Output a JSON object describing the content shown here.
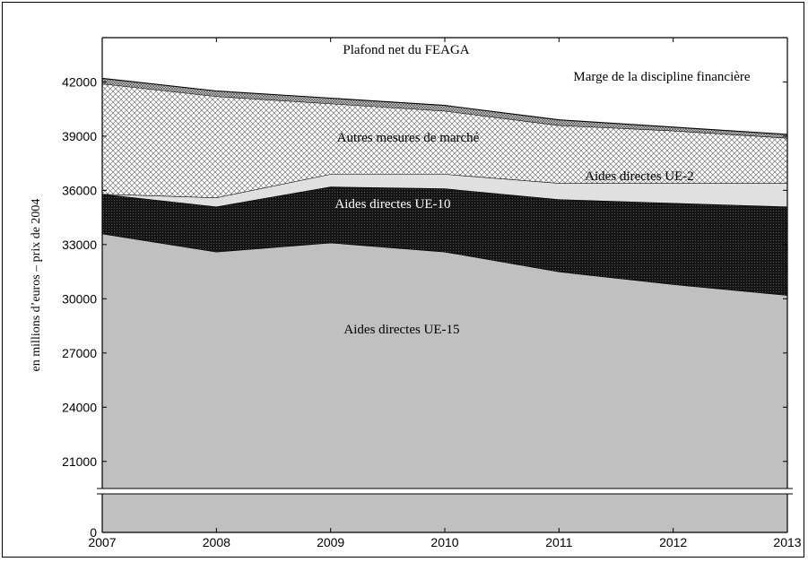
{
  "chart_data": {
    "type": "area",
    "stacked": true,
    "title": "",
    "xlabel": "",
    "ylabel": "en millions d’euros – prix de 2004",
    "x": [
      2007,
      2008,
      2009,
      2010,
      2011,
      2012,
      2013
    ],
    "y_ticks": [
      0,
      21000,
      24000,
      27000,
      30000,
      33000,
      36000,
      39000,
      42000
    ],
    "y_break": {
      "from": 0,
      "to": 19500
    },
    "ylim": [
      19500,
      44500
    ],
    "grid": false,
    "cumulative_series": [
      {
        "name": "Aides directes UE-15",
        "label": "Aides directes UE-15",
        "top": [
          33600,
          32600,
          33100,
          32600,
          31500,
          30800,
          30200
        ],
        "color": "#c0c0c0",
        "pattern": "solid"
      },
      {
        "name": "Aides directes UE-10",
        "label": "Aides directes UE-10",
        "top": [
          35800,
          35100,
          36200,
          36100,
          35500,
          35300,
          35100
        ],
        "color": "#141414",
        "pattern": "dots"
      },
      {
        "name": "Aides directes UE-2",
        "label": "Aides directes UE-2",
        "top": [
          35800,
          35600,
          36900,
          36900,
          36400,
          36400,
          36400
        ],
        "color": "#e0e0e0",
        "pattern": "solid"
      },
      {
        "name": "Autres mesures de marché",
        "label": "Autres mesures de marché",
        "top": [
          41900,
          41200,
          40800,
          40400,
          39600,
          39300,
          38900
        ],
        "color": "#ffffff",
        "pattern": "crosshatch"
      },
      {
        "name": "Marge de la discipline financière",
        "label": "Marge de la discipline financière",
        "top": [
          42200,
          41500,
          41100,
          40700,
          39900,
          39500,
          39100
        ],
        "color": "#b8b8b8",
        "pattern": "dense-crosshatch"
      }
    ],
    "ceiling_label": "Plafond net du FEAGA"
  }
}
